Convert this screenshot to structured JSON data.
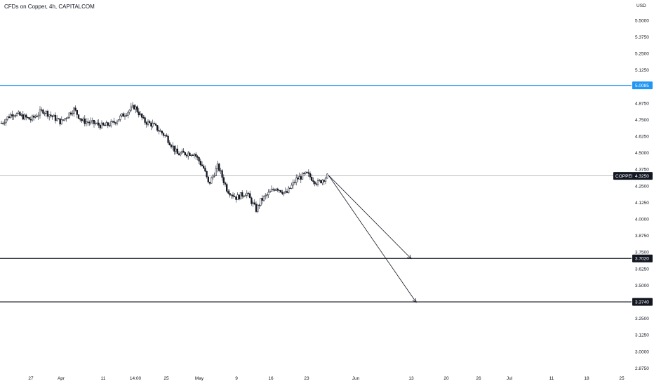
{
  "header": {
    "title": "CFDs on Copper, 4h, CAPITALCOM",
    "currency": "USD"
  },
  "colors": {
    "background": "#ffffff",
    "candle": "#131722",
    "resistance_line": "#2196f3",
    "support_line": "#131722",
    "current_line": "#9598a1",
    "axis_text": "#131722",
    "tag_blue": "#2196f3",
    "tag_dark": "#131722"
  },
  "chart_data": {
    "type": "candlestick",
    "symbol": "COPPER",
    "currency": "USD",
    "ylim": [
      2.78,
      5.6
    ],
    "y_ticks": [
      "5.5000",
      "5.3750",
      "5.2500",
      "5.1250",
      "4.8750",
      "4.7500",
      "4.6250",
      "4.5000",
      "4.3750",
      "4.2500",
      "4.1250",
      "4.0000",
      "3.8750",
      "3.7500",
      "3.6250",
      "3.5000",
      "3.2500",
      "3.1250",
      "3.0000",
      "2.8750"
    ],
    "x_ticks": [
      "27",
      "Apr",
      "11",
      "14:00",
      "25",
      "May",
      "9",
      "16",
      "23",
      "Jun",
      "13",
      "20",
      "26",
      "Jul",
      "11",
      "18",
      "25"
    ],
    "current_price": {
      "label": "COPPER",
      "value": "4.3250"
    },
    "horizontal_levels": [
      {
        "value": "5.0085",
        "style": "resistance"
      },
      {
        "value": "3.7020",
        "style": "support"
      },
      {
        "value": "3.3740",
        "style": "support"
      }
    ],
    "projection_arrows": [
      {
        "from": {
          "date": "May 27",
          "price": 4.33
        },
        "to": {
          "date": "Jun 13",
          "price": 3.7
        }
      },
      {
        "from": {
          "date": "May 27",
          "price": 4.33
        },
        "to": {
          "date": "Jun 14",
          "price": 3.37
        }
      }
    ],
    "price_path": [
      {
        "date": "Mar 22",
        "close": 4.72
      },
      {
        "date": "Mar 24",
        "close": 4.8
      },
      {
        "date": "Mar 27",
        "close": 4.75
      },
      {
        "date": "Mar 29",
        "close": 4.82
      },
      {
        "date": "Apr 1",
        "close": 4.73
      },
      {
        "date": "Apr 4",
        "close": 4.83
      },
      {
        "date": "Apr 6",
        "close": 4.74
      },
      {
        "date": "Apr 9",
        "close": 4.72
      },
      {
        "date": "Apr 11",
        "close": 4.7
      },
      {
        "date": "Apr 13",
        "close": 4.72
      },
      {
        "date": "Apr 16",
        "close": 4.8
      },
      {
        "date": "Apr 18",
        "close": 4.85
      },
      {
        "date": "Apr 20",
        "close": 4.74
      },
      {
        "date": "Apr 22",
        "close": 4.71
      },
      {
        "date": "Apr 25",
        "close": 4.62
      },
      {
        "date": "Apr 27",
        "close": 4.49
      },
      {
        "date": "Apr 30",
        "close": 4.5
      },
      {
        "date": "May 2",
        "close": 4.38
      },
      {
        "date": "May 3",
        "close": 4.26
      },
      {
        "date": "May 5",
        "close": 4.4
      },
      {
        "date": "May 7",
        "close": 4.22
      },
      {
        "date": "May 9",
        "close": 4.16
      },
      {
        "date": "May 11",
        "close": 4.2
      },
      {
        "date": "May 13",
        "close": 4.07
      },
      {
        "date": "May 14",
        "close": 4.14
      },
      {
        "date": "May 17",
        "close": 4.24
      },
      {
        "date": "May 19",
        "close": 4.19
      },
      {
        "date": "May 21",
        "close": 4.3
      },
      {
        "date": "May 23",
        "close": 4.34
      },
      {
        "date": "May 25",
        "close": 4.27
      },
      {
        "date": "May 27",
        "close": 4.33
      }
    ]
  }
}
